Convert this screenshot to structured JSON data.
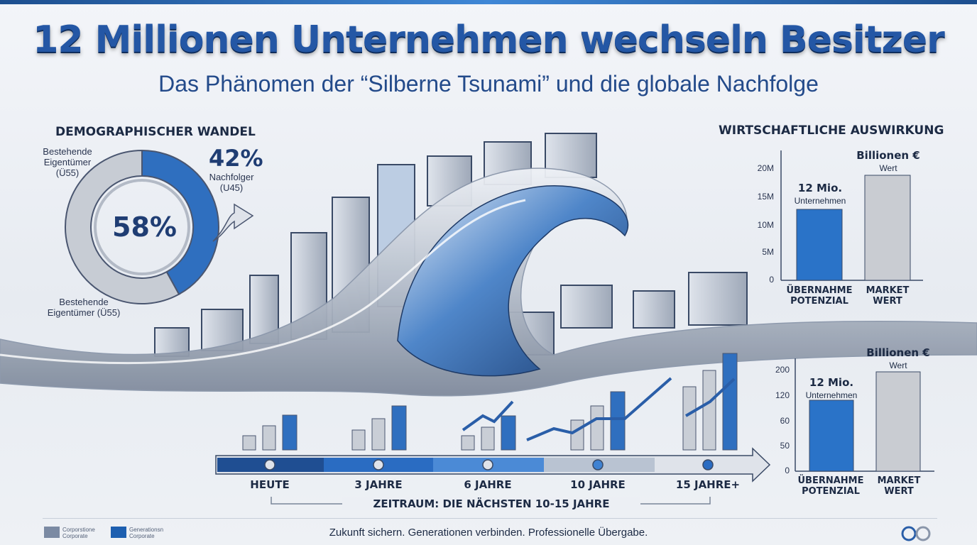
{
  "header": {
    "title": "12 Millionen Unternehmen wechseln Besitzer",
    "subtitle": "Das Phänomen der “Silberne Tsunami” und die globale Nachfolge"
  },
  "demographics": {
    "heading": "DEMOGRAPHISCHER WANDEL",
    "owner_label_top": [
      "Bestehende",
      "Eigentümer",
      "(Ü55)"
    ],
    "owner_label_bottom": [
      "Bestehende",
      "Eigentümer (Ü55)"
    ],
    "owners_pct_text": "58%",
    "successor_pct_text": "42%",
    "successor_label": [
      "Nachfolger",
      "(U45)"
    ],
    "chart_data": {
      "type": "pie",
      "categories": [
        "Bestehende Eigentümer (Ü55)",
        "Nachfolger (U45)"
      ],
      "values": [
        58,
        42
      ],
      "colors": [
        "#c7ccd4",
        "#2f6fbf"
      ]
    }
  },
  "impact_top": {
    "heading": "WIRTSCHAFTLICHE AUSWIRKUNG",
    "ticks": [
      "20M",
      "15M",
      "10M",
      "5M",
      "0"
    ],
    "bar1_title": "12 Mio.",
    "bar1_sub": "Unternehmen",
    "bar2_title": "Billionen €",
    "bar2_sub": "Wert",
    "cat1": [
      "ÜBERNAHME",
      "POTENZIAL"
    ],
    "cat2": [
      "MARKET",
      "WERT"
    ],
    "chart_data": {
      "type": "bar",
      "categories": [
        "ÜBERNAHME POTENZIAL",
        "MARKET WERT"
      ],
      "values": [
        12.5,
        18.5
      ],
      "ylim": [
        0,
        20
      ],
      "colors": [
        "#2a73c8",
        "#c9ccd2"
      ]
    }
  },
  "impact_bottom": {
    "ticks": [
      "200",
      "120",
      "60",
      "50",
      "0"
    ],
    "bar1_title": "12 Mio.",
    "bar1_sub": "Unternehmen",
    "bar2_title": "Billionen €",
    "bar2_sub": "Wert",
    "cat1": [
      "ÜBERNAHME",
      "POTENZIAL"
    ],
    "cat2": [
      "MARKET",
      "WERT"
    ],
    "chart_data": {
      "type": "bar",
      "categories": [
        "ÜBERNAHME POTENZIAL",
        "MARKET WERT"
      ],
      "values": [
        100,
        140
      ],
      "colors": [
        "#2a73c8",
        "#c9ccd2"
      ]
    }
  },
  "timeline": {
    "stages": [
      "HEUTE",
      "3 JAHRE",
      "6 JAHRE",
      "10 JAHRE",
      "15 JAHRE+"
    ],
    "period": "ZEITRAUM: DIE NÄCHSTEN 10-15 JAHRE"
  },
  "footer": {
    "tagline": "Zukunft sichern. Generationen verbinden. Professionelle Übergabe.",
    "brand1": [
      "Corporstione",
      "Corporate"
    ],
    "brand2": [
      "Generationsn",
      "Corporate"
    ]
  }
}
